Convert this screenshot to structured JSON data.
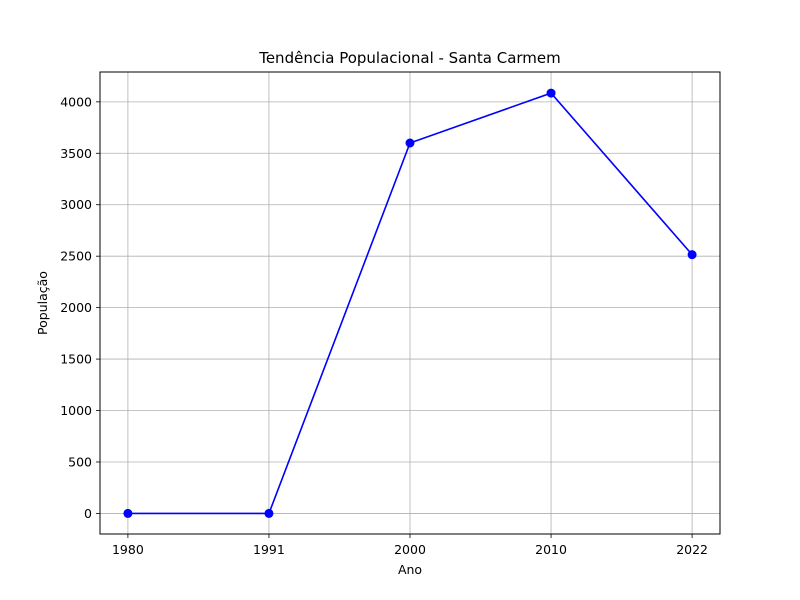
{
  "chart_data": {
    "type": "line",
    "title": "Tendência Populacional - Santa Carmem",
    "xlabel": "Ano",
    "ylabel": "População",
    "categories": [
      "1980",
      "1991",
      "2000",
      "2010",
      "2022"
    ],
    "series": [
      {
        "values": [
          0,
          0,
          3600,
          4085,
          2515
        ],
        "color": "#0000ff",
        "marker": "circle"
      }
    ],
    "ylim": [
      -200,
      4290
    ],
    "yticks": [
      0,
      500,
      1000,
      1500,
      2000,
      2500,
      3000,
      3500,
      4000
    ],
    "grid": true,
    "legend": "none"
  }
}
